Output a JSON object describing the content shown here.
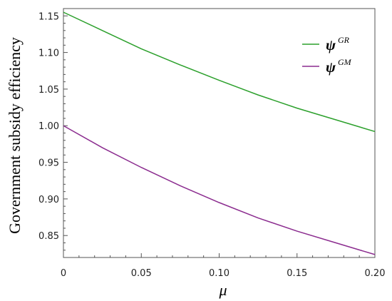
{
  "chart_data": {
    "type": "line",
    "title": "",
    "xlabel": "μ",
    "ylabel": "Government subsidy efficiency",
    "xlim": [
      0,
      0.2
    ],
    "ylim": [
      0.82,
      1.16
    ],
    "grid": false,
    "legend_position": "top-right",
    "x_ticks": [
      "0",
      "0.05",
      "0.10",
      "0.15",
      "0.20"
    ],
    "y_ticks": [
      "0.85",
      "0.90",
      "0.95",
      "1.00",
      "1.05",
      "1.10",
      "1.15"
    ],
    "x": [
      0,
      0.025,
      0.05,
      0.075,
      0.1,
      0.125,
      0.15,
      0.175,
      0.2
    ],
    "series": [
      {
        "name": "ψ^GR",
        "symbol": "ψ",
        "superscript": "GR",
        "color": "#2ca02c",
        "values": [
          1.155,
          1.13,
          1.105,
          1.083,
          1.062,
          1.042,
          1.024,
          1.008,
          0.992
        ]
      },
      {
        "name": "ψ^GM",
        "symbol": "ψ",
        "superscript": "GM",
        "color": "#8b2c8f",
        "values": [
          1.0,
          0.97,
          0.943,
          0.918,
          0.895,
          0.874,
          0.856,
          0.84,
          0.824
        ]
      }
    ]
  }
}
